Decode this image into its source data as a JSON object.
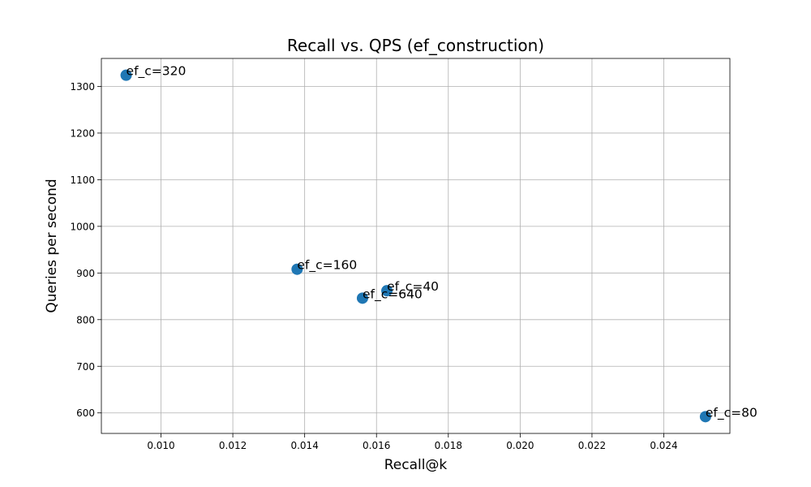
{
  "chart_data": {
    "type": "scatter",
    "title": "Recall vs. QPS (ef_construction)",
    "xlabel": "Recall@k",
    "ylabel": "Queries per second",
    "xlim": [
      0.00834,
      0.02584
    ],
    "ylim": [
      556,
      1360
    ],
    "xticks": [
      0.01,
      0.012,
      0.014,
      0.016,
      0.018,
      0.02,
      0.022,
      0.024
    ],
    "xtick_labels": [
      "0.010",
      "0.012",
      "0.014",
      "0.016",
      "0.018",
      "0.020",
      "0.022",
      "0.024"
    ],
    "yticks": [
      600,
      700,
      800,
      900,
      1000,
      1100,
      1200,
      1300
    ],
    "ytick_labels": [
      "600",
      "700",
      "800",
      "900",
      "1000",
      "1100",
      "1200",
      "1300"
    ],
    "grid": true,
    "marker_color": "#1f77b4",
    "points": [
      {
        "x": 0.00903,
        "y": 1324,
        "label": "ef_c=320"
      },
      {
        "x": 0.01379,
        "y": 908,
        "label": "ef_c=160"
      },
      {
        "x": 0.01561,
        "y": 846,
        "label": "ef_c=640"
      },
      {
        "x": 0.01629,
        "y": 862,
        "label": "ef_c=40"
      },
      {
        "x": 0.02516,
        "y": 592,
        "label": "ef_c=80"
      }
    ]
  }
}
